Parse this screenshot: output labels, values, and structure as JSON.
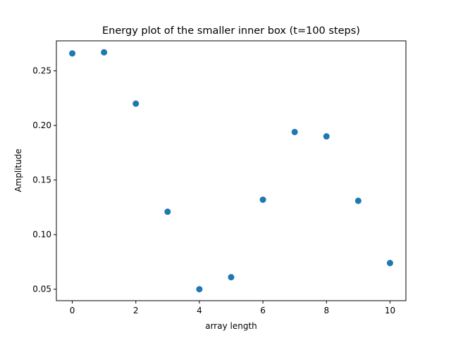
{
  "chart_data": {
    "type": "scatter",
    "title": "Energy plot of the smaller inner box (t=100 steps)",
    "xlabel": "array length",
    "ylabel": "Amplitude",
    "x": [
      0,
      1,
      2,
      3,
      4,
      5,
      6,
      7,
      8,
      9,
      10
    ],
    "y": [
      0.266,
      0.267,
      0.22,
      0.121,
      0.05,
      0.061,
      0.132,
      0.194,
      0.19,
      0.131,
      0.074
    ],
    "xlim": [
      -0.5,
      10.5
    ],
    "ylim": [
      0.0395,
      0.2775
    ],
    "xticks": [
      0,
      2,
      4,
      6,
      8,
      10
    ],
    "xtick_labels": [
      "0",
      "2",
      "4",
      "6",
      "8",
      "10"
    ],
    "yticks": [
      0.05,
      0.1,
      0.15,
      0.2,
      0.25
    ],
    "ytick_labels": [
      "0.05",
      "0.10",
      "0.15",
      "0.20",
      "0.25"
    ],
    "marker_color": "#1f77b4",
    "grid": false,
    "legend": "none"
  }
}
